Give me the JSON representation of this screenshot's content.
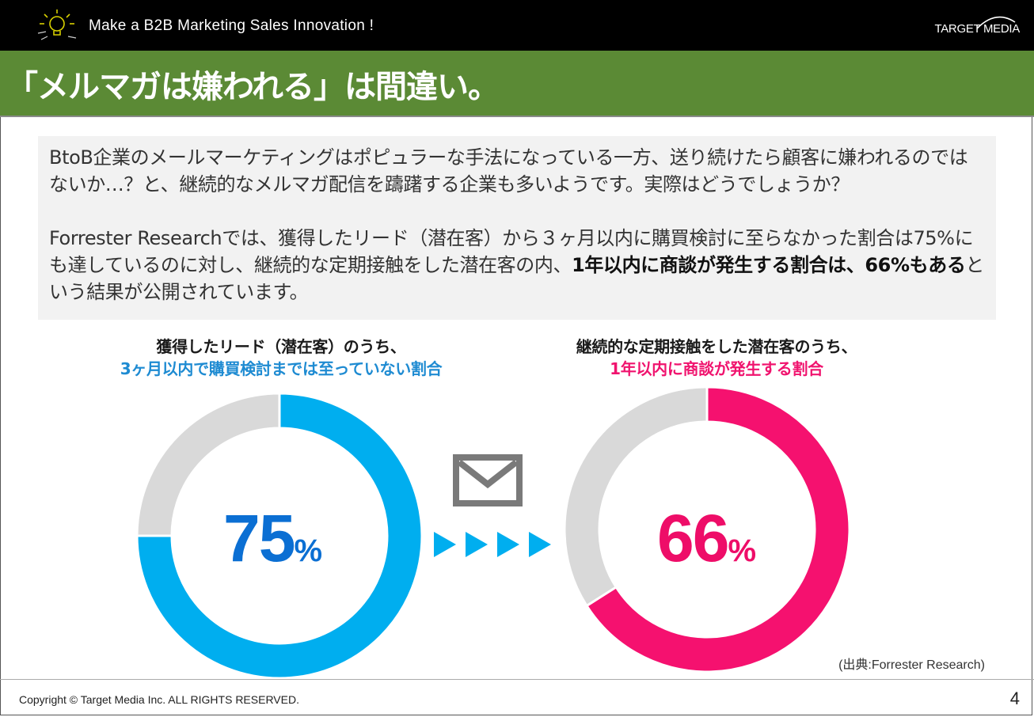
{
  "header": {
    "tagline": "Make a B2B Marketing Sales Innovation !",
    "brand": "TARGET MEDIA"
  },
  "title": "「メルマガは嫌われる」は間違い。",
  "intro": {
    "p1": "BtoB企業のメールマーケティングはポピュラーな手法になっている一方、送り続けたら顧客に嫌われるのではないか…？と、継続的なメルマガ配信を躊躇する企業も多いようです。実際はどうでしょうか？",
    "p2_start": "Forrester Researchでは、獲得したリード（潜在客）から３ヶ月以内に購買検討に至らなかった割合は75%にも達しているのに対し、継続的な定期接触をした潜在客の内、",
    "p2_bold": "1年以内に商談が発生する割合は、66%もある",
    "p2_end": "という結果が公開されています。"
  },
  "chart_data": [
    {
      "type": "pie",
      "title_line1": "獲得したリード（潜在客）のうち、",
      "title_line2": "3ヶ月以内で購買検討までは至っていない割合",
      "value": 75,
      "value_label": "75",
      "unit": "%",
      "colors": {
        "value": "#00aeef",
        "rest": "#d9d9d9",
        "text": "#0b6fd3"
      }
    },
    {
      "type": "pie",
      "title_line1": "継続的な定期接触をした潜在客のうち、",
      "title_line2": "1年以内に商談が発生する割合",
      "value": 66,
      "value_label": "66",
      "unit": "%",
      "colors": {
        "value": "#f5116f",
        "rest": "#d9d9d9",
        "text": "#ee0d68"
      }
    }
  ],
  "icons": {
    "mail": "mail-icon",
    "arrows": "play-arrows-icon",
    "bulb": "lightbulb-icon"
  },
  "source": "(出典:Forrester Research)",
  "footer": {
    "copyright": "Copyright © Target Media Inc. ALL RIGHTS RESERVED.",
    "page_number": "4"
  }
}
